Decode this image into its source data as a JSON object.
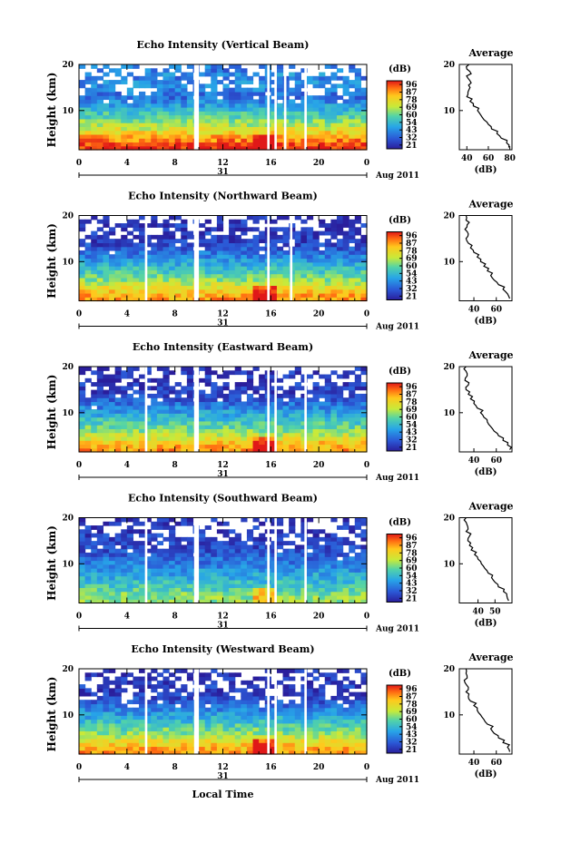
{
  "common": {
    "y_label": "Height (km)",
    "x_axis_label": "Local Time",
    "date_label": "Aug 2011",
    "day_label": "31",
    "colorbar_unit": "(dB)",
    "avg_title": "Average",
    "avg_xlabel": "(dB)",
    "colorbar_ticks": [
      "96",
      "87",
      "78",
      "69",
      "60",
      "54",
      "43",
      "32",
      "21"
    ]
  },
  "chart_data": [
    {
      "type": "heatmap",
      "title": "Echo Intensity (Vertical Beam)",
      "x_ticks": [
        "0",
        "4",
        "8",
        "12",
        "16",
        "20",
        "0"
      ],
      "y_ticks": [
        "20",
        "10"
      ],
      "xlim": [
        0,
        24
      ],
      "ylim": [
        1.5,
        20
      ],
      "zlim": [
        21,
        96
      ],
      "data_gaps_hours": [
        [
          9.6,
          10.0
        ],
        [
          15.7,
          15.9
        ],
        [
          16.3,
          16.5
        ],
        [
          17.1,
          17.3
        ],
        [
          18.8,
          19.0
        ]
      ],
      "average_profile": {
        "x_ticks": [
          "40",
          "60",
          "80"
        ],
        "xlim": [
          33,
          82
        ],
        "height": [
          2,
          3,
          4,
          5,
          6,
          7,
          8,
          9,
          10,
          11,
          12,
          13,
          14,
          15,
          16,
          17,
          18,
          19,
          20
        ],
        "db": [
          79,
          77,
          72,
          68,
          63,
          60,
          56,
          53,
          50,
          46,
          43,
          40,
          41,
          43,
          44,
          41,
          44,
          40,
          42
        ]
      }
    },
    {
      "type": "heatmap",
      "title": "Echo Intensity (Northward Beam)",
      "x_ticks": [
        "0",
        "4",
        "8",
        "12",
        "16",
        "20",
        "0"
      ],
      "y_ticks": [
        "20",
        "10"
      ],
      "xlim": [
        0,
        24
      ],
      "ylim": [
        1.5,
        20
      ],
      "zlim": [
        21,
        96
      ],
      "data_gaps_hours": [
        [
          5.5,
          5.7
        ],
        [
          9.6,
          10.0
        ],
        [
          15.7,
          15.9
        ],
        [
          17.6,
          17.8
        ]
      ],
      "average_profile": {
        "x_ticks": [
          "40",
          "60"
        ],
        "xlim": [
          27,
          74
        ],
        "height": [
          2,
          3,
          4,
          5,
          6,
          7,
          8,
          9,
          10,
          11,
          12,
          13,
          14,
          15,
          16,
          17,
          18,
          19,
          20
        ],
        "db": [
          72,
          70,
          66,
          62,
          58,
          55,
          52,
          49,
          46,
          43,
          40,
          37,
          35,
          33,
          35,
          32,
          34,
          33,
          33
        ]
      }
    },
    {
      "type": "heatmap",
      "title": "Echo Intensity (Eastward Beam)",
      "x_ticks": [
        "0",
        "4",
        "8",
        "12",
        "16",
        "20",
        "0"
      ],
      "y_ticks": [
        "20",
        "10"
      ],
      "xlim": [
        0,
        24
      ],
      "ylim": [
        1.5,
        20
      ],
      "zlim": [
        21,
        96
      ],
      "data_gaps_hours": [
        [
          5.5,
          5.7
        ],
        [
          9.6,
          10.0
        ],
        [
          15.7,
          15.9
        ],
        [
          16.3,
          16.5
        ],
        [
          18.8,
          19.0
        ]
      ],
      "average_profile": {
        "x_ticks": [
          "40",
          "60"
        ],
        "xlim": [
          27,
          74
        ],
        "height": [
          2,
          3,
          4,
          5,
          6,
          7,
          8,
          9,
          10,
          11,
          12,
          13,
          14,
          15,
          16,
          17,
          18,
          19,
          20
        ],
        "db": [
          72,
          70,
          66,
          62,
          58,
          55,
          52,
          49,
          46,
          43,
          40,
          37,
          35,
          33,
          35,
          32,
          34,
          33,
          33
        ]
      }
    },
    {
      "type": "heatmap",
      "title": "Echo Intensity (Southward Beam)",
      "x_ticks": [
        "0",
        "4",
        "8",
        "12",
        "16",
        "20",
        "0"
      ],
      "y_ticks": [
        "20",
        "10"
      ],
      "xlim": [
        0,
        24
      ],
      "ylim": [
        1.5,
        20
      ],
      "zlim": [
        21,
        96
      ],
      "data_gaps_hours": [
        [
          5.5,
          5.7
        ],
        [
          9.6,
          10.0
        ],
        [
          15.7,
          15.9
        ],
        [
          16.3,
          16.5
        ],
        [
          18.8,
          19.0
        ]
      ],
      "average_profile": {
        "x_ticks": [
          "40",
          "50"
        ],
        "xlim": [
          29,
          60
        ],
        "height": [
          2,
          3,
          4,
          5,
          6,
          7,
          8,
          9,
          10,
          11,
          12,
          13,
          14,
          15,
          16,
          17,
          18,
          19,
          20
        ],
        "db": [
          58,
          57,
          55,
          52,
          50,
          48,
          46,
          44,
          42,
          40,
          38,
          36,
          35,
          34,
          35,
          33,
          34,
          33,
          33
        ]
      }
    },
    {
      "type": "heatmap",
      "title": "Echo Intensity (Westward Beam)",
      "x_ticks": [
        "0",
        "4",
        "8",
        "12",
        "16",
        "20",
        "0"
      ],
      "y_ticks": [
        "20",
        "10"
      ],
      "xlim": [
        0,
        24
      ],
      "ylim": [
        1.5,
        20
      ],
      "zlim": [
        21,
        96
      ],
      "data_gaps_hours": [
        [
          5.5,
          5.7
        ],
        [
          9.6,
          10.0
        ],
        [
          15.7,
          15.9
        ],
        [
          16.3,
          16.5
        ],
        [
          18.8,
          19.0
        ]
      ],
      "average_profile": {
        "x_ticks": [
          "40",
          "60"
        ],
        "xlim": [
          27,
          74
        ],
        "height": [
          2,
          3,
          4,
          5,
          6,
          7,
          8,
          9,
          10,
          11,
          12,
          13,
          14,
          15,
          16,
          17,
          18,
          19,
          20
        ],
        "db": [
          72,
          70,
          66,
          62,
          58,
          55,
          52,
          49,
          46,
          43,
          40,
          37,
          35,
          33,
          35,
          32,
          34,
          33,
          33
        ]
      }
    }
  ]
}
